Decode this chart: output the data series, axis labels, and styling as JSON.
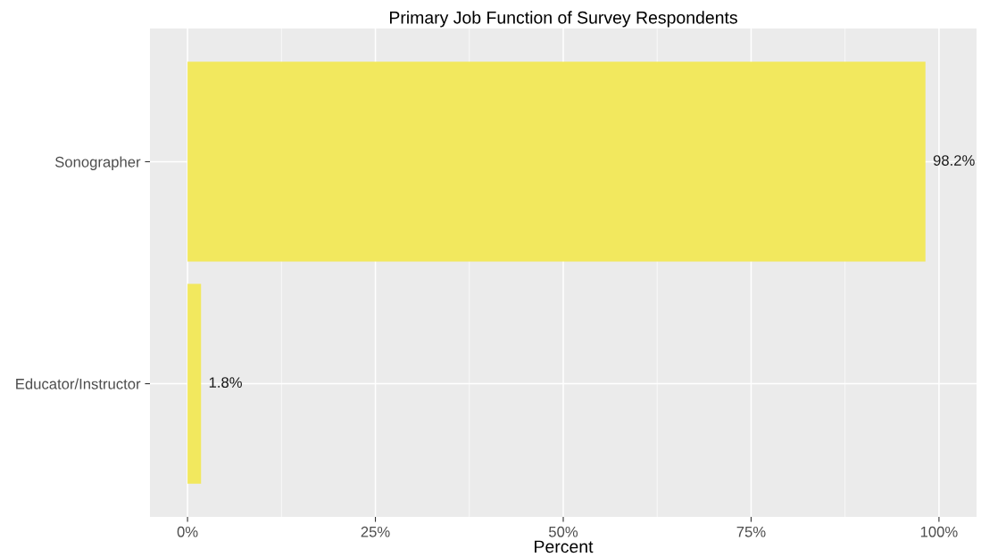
{
  "chart_data": {
    "type": "bar",
    "orientation": "horizontal",
    "title": "Primary Job Function of Survey Respondents",
    "xlabel": "Percent",
    "categories": [
      "Sonographer",
      "Educator/Instructor"
    ],
    "values": [
      98.2,
      1.8
    ],
    "color": "#f2e85e",
    "value_labels": [
      "98.2%",
      "1.8%"
    ],
    "xlim": [
      -5,
      105
    ],
    "xticks": [
      {
        "value": 0,
        "label": "0%"
      },
      {
        "value": 25,
        "label": "25%"
      },
      {
        "value": 50,
        "label": "50%"
      },
      {
        "value": 75,
        "label": "75%"
      },
      {
        "value": 100,
        "label": "100%"
      }
    ],
    "grid": true
  }
}
